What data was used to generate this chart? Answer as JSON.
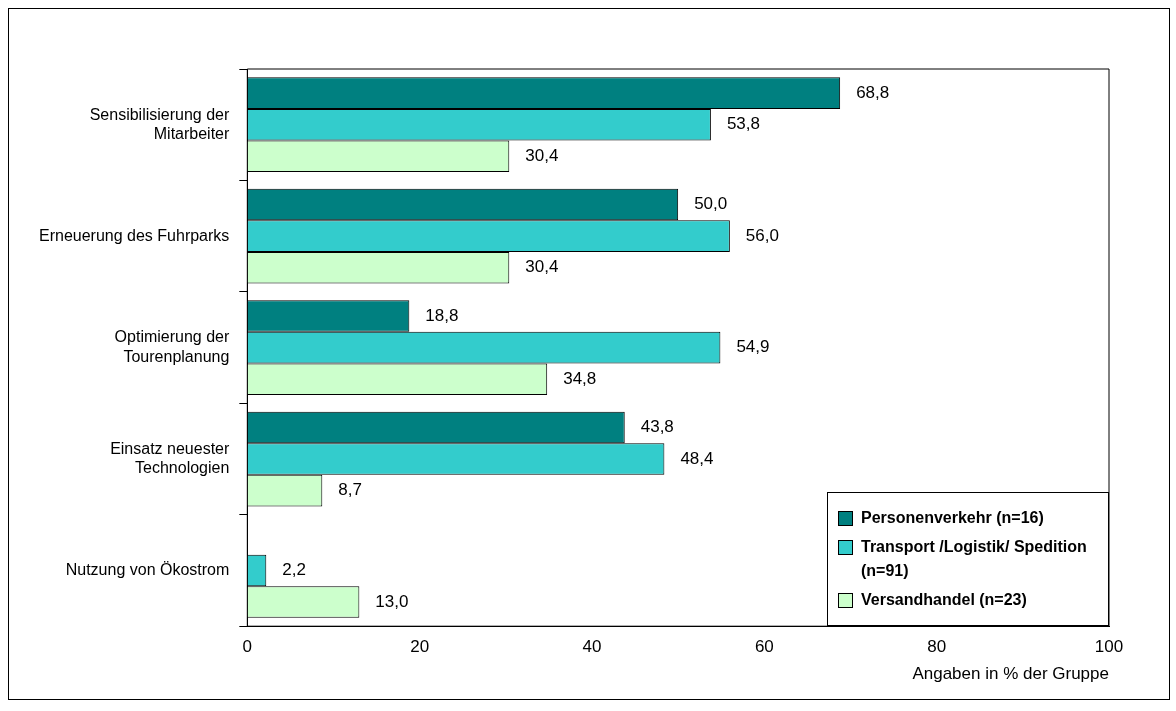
{
  "chart_data": {
    "type": "bar",
    "orientation": "horizontal",
    "xlabel": "Angaben in % der Gruppe",
    "categories": [
      "Sensibilisierung der Mitarbeiter",
      "Erneuerung des Fuhrparks",
      "Optimierung der Tourenplanung",
      "Einsatz neuester Technologien",
      "Nutzung von Ökostrom"
    ],
    "series": [
      {
        "name": "Personenverkehr (n=16)",
        "color": "#008080",
        "values": [
          68.8,
          50.0,
          18.8,
          43.8,
          0
        ],
        "value_labels": [
          "68,8",
          "50,0",
          "18,8",
          "43,8",
          null
        ]
      },
      {
        "name": "Transport /Logistik/ Spedition (n=91)",
        "color": "#33cccc",
        "values": [
          53.8,
          56.0,
          54.9,
          48.4,
          2.2
        ],
        "value_labels": [
          "53,8",
          "56,0",
          "54,9",
          "48,4",
          "2,2"
        ]
      },
      {
        "name": "Versandhandel (n=23)",
        "color": "#ccffcc",
        "values": [
          30.4,
          30.4,
          34.8,
          8.7,
          13.0
        ],
        "value_labels": [
          "30,4",
          "30,4",
          "34,8",
          "8,7",
          "13,0"
        ]
      }
    ],
    "xlim": [
      0,
      100
    ],
    "xticks": [
      0,
      20,
      40,
      60,
      80,
      100
    ],
    "grid": false,
    "legend": "bottom right"
  }
}
